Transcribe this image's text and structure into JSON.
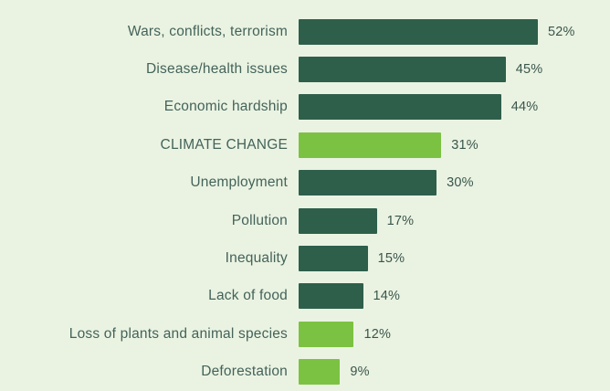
{
  "colors": {
    "background": "#EAF3E2",
    "bar_default": "#2E5F4B",
    "bar_highlight": "#7CC242",
    "label_text": "#44635A",
    "value_text": "#3A564C"
  },
  "chart_data": {
    "type": "bar",
    "orientation": "horizontal",
    "title": "",
    "xlabel": "",
    "ylabel": "",
    "value_suffix": "%",
    "xlim": [
      0,
      52
    ],
    "grid": false,
    "legend": false,
    "categories": [
      "Wars, conflicts, terrorism",
      "Disease/health issues",
      "Economic hardship",
      "CLIMATE CHANGE",
      "Unemployment",
      "Pollution",
      "Inequality",
      "Lack of food",
      "Loss of plants and animal species",
      "Deforestation"
    ],
    "values": [
      52,
      45,
      44,
      31,
      30,
      17,
      15,
      14,
      12,
      9
    ],
    "value_labels": [
      "52%",
      "45%",
      "44%",
      "31%",
      "30%",
      "17%",
      "15%",
      "14%",
      "12%",
      "9%"
    ],
    "highlighted": [
      false,
      false,
      false,
      true,
      false,
      false,
      false,
      false,
      true,
      true
    ]
  }
}
